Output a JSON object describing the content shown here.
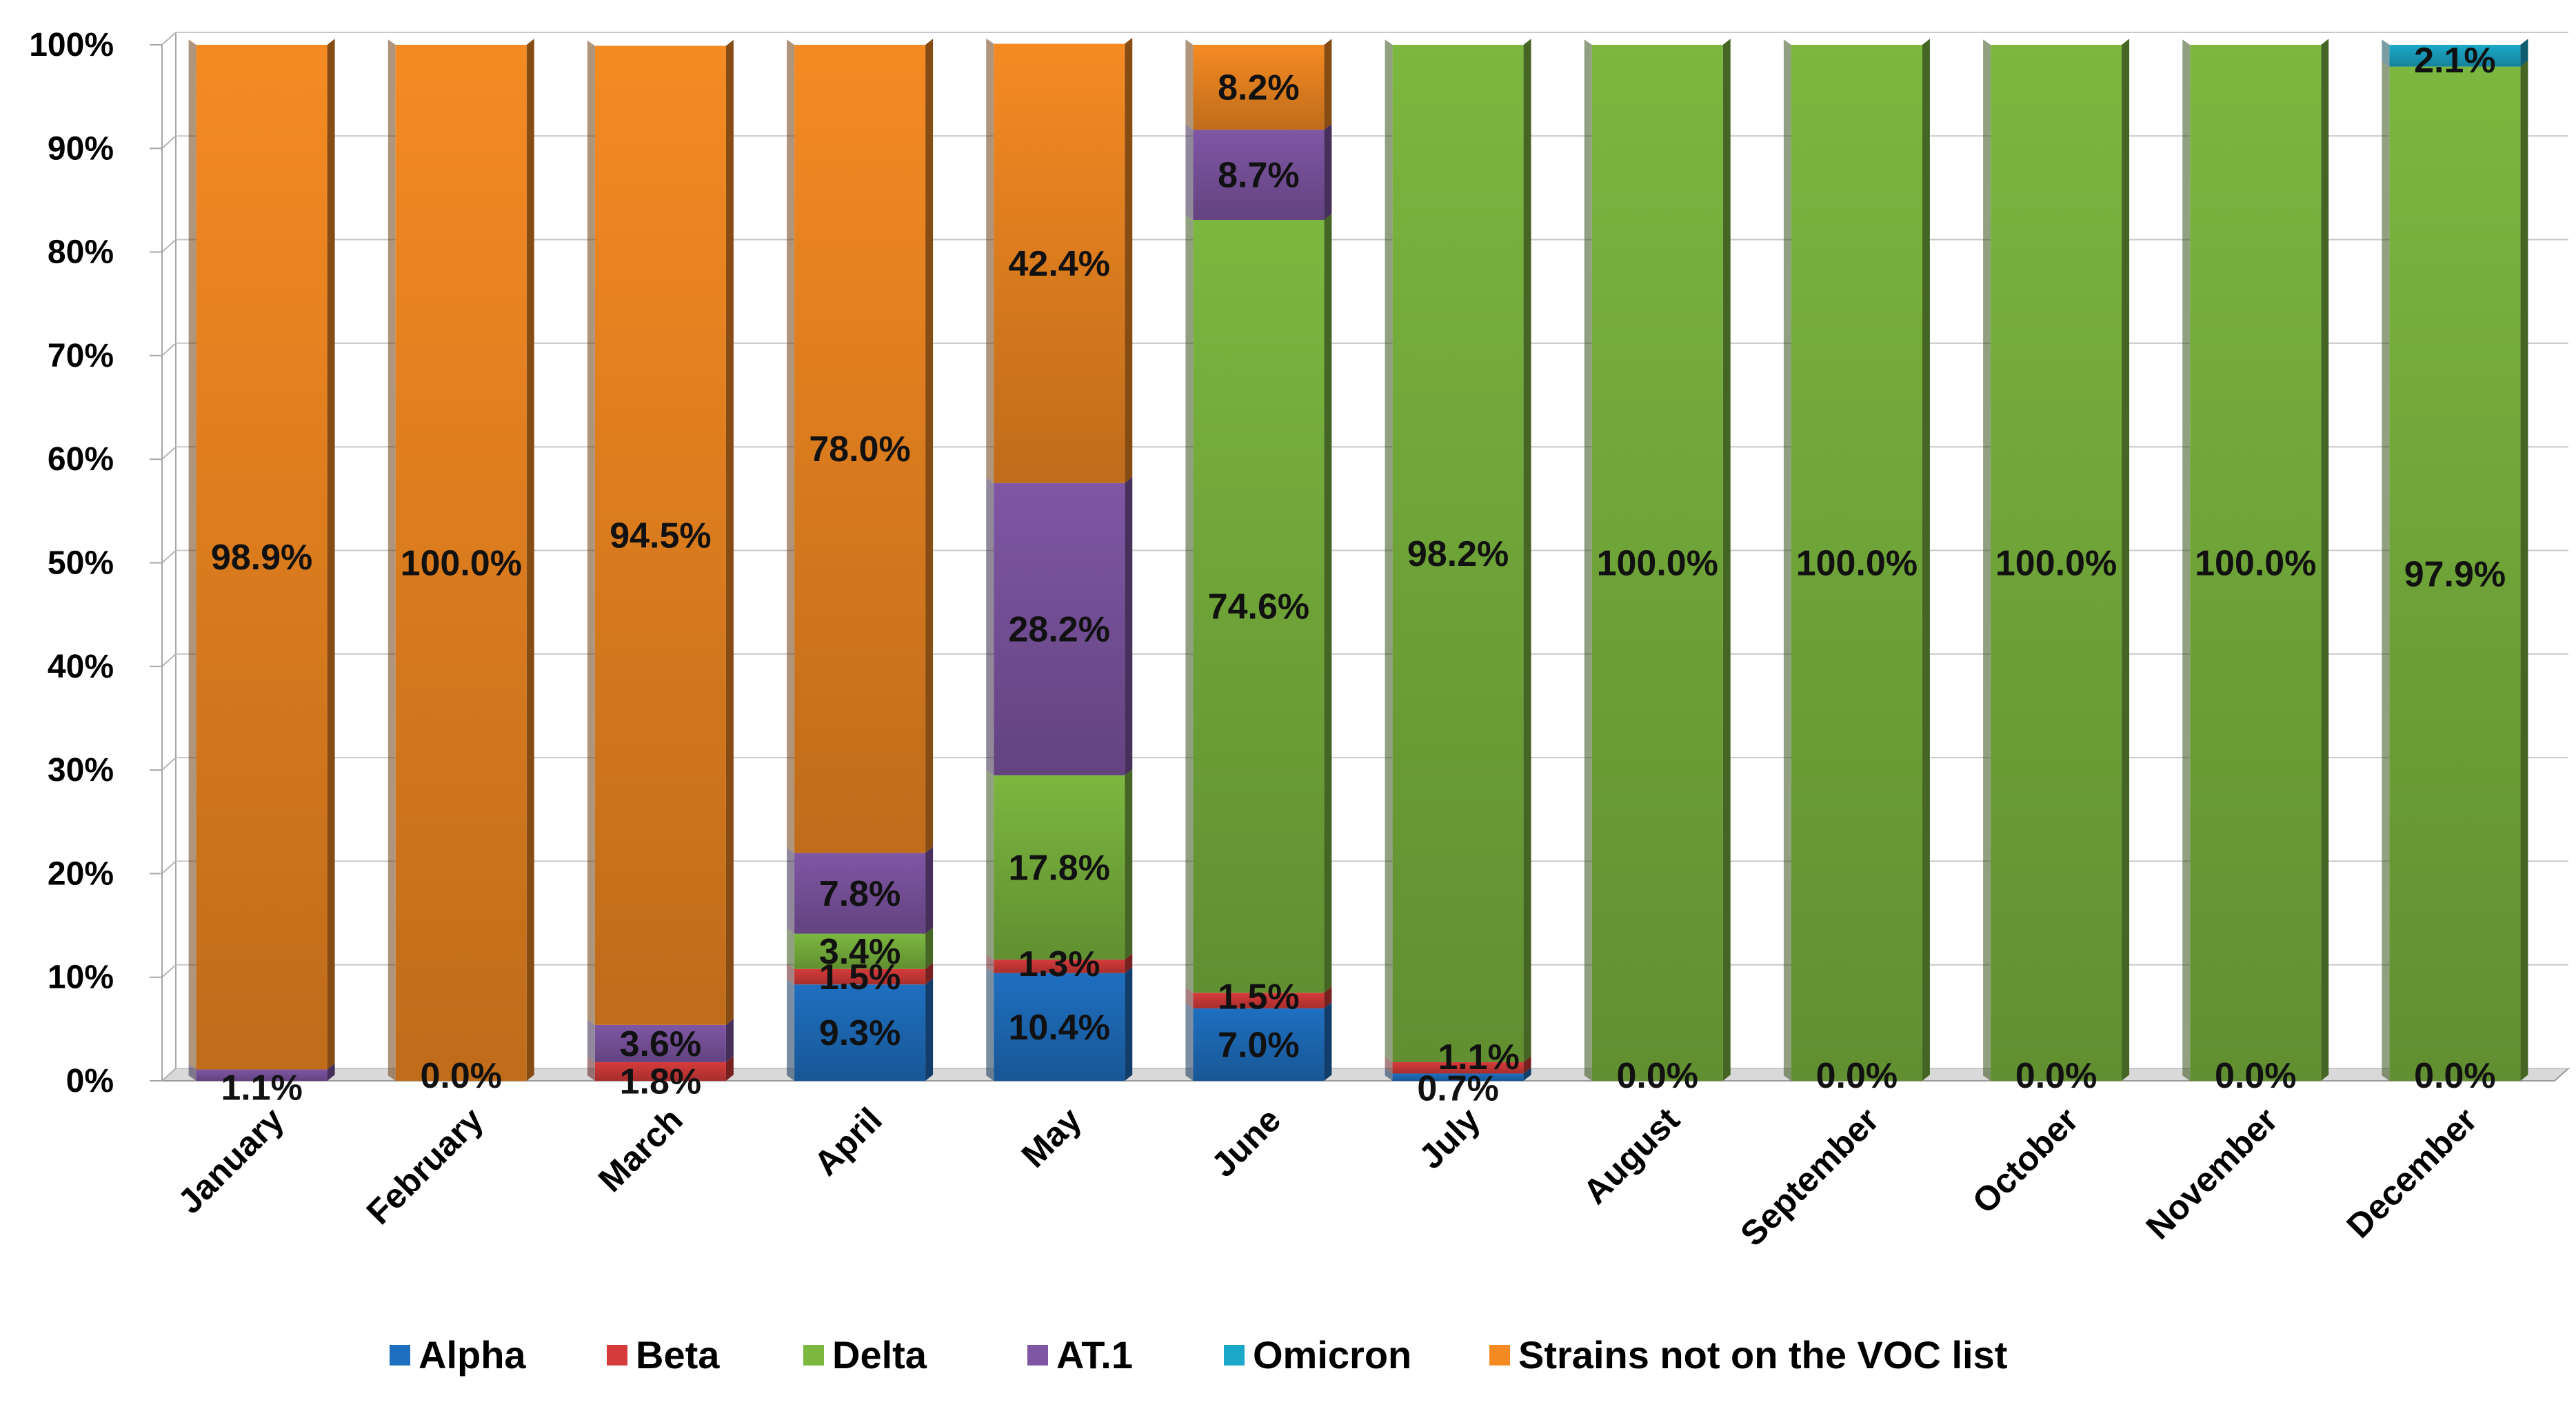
{
  "chart_data": {
    "type": "bar",
    "stacked": true,
    "percent": true,
    "title": "",
    "xlabel": "",
    "ylabel": "",
    "ylim": [
      0,
      100
    ],
    "y_ticks": [
      "0%",
      "10%",
      "20%",
      "30%",
      "40%",
      "50%",
      "60%",
      "70%",
      "80%",
      "90%",
      "100%"
    ],
    "categories": [
      "January",
      "February",
      "March",
      "April",
      "May",
      "June",
      "July",
      "August",
      "September",
      "October",
      "November",
      "December"
    ],
    "series": [
      {
        "name": "Alpha",
        "color": "#1f6fc0",
        "values": [
          0,
          0,
          0,
          9.3,
          10.4,
          7.0,
          0.7,
          0,
          0,
          0,
          0,
          0
        ]
      },
      {
        "name": "Beta",
        "color": "#d63b3b",
        "values": [
          0,
          0,
          1.8,
          1.5,
          1.3,
          1.5,
          1.1,
          0,
          0,
          0,
          0,
          0
        ]
      },
      {
        "name": "Delta",
        "color": "#7cb73f",
        "values": [
          0,
          0,
          0,
          3.4,
          17.8,
          74.6,
          98.2,
          100.0,
          100.0,
          100.0,
          100.0,
          97.9
        ]
      },
      {
        "name": "AT.1",
        "color": "#7f56a4",
        "values": [
          1.1,
          0,
          3.6,
          7.8,
          28.2,
          8.7,
          0,
          0,
          0,
          0,
          0,
          0
        ]
      },
      {
        "name": "Omicron",
        "color": "#1ba8c8",
        "values": [
          0,
          0,
          0,
          0,
          0,
          0,
          0,
          0,
          0,
          0,
          0,
          2.1
        ]
      },
      {
        "name": "Strains not on the VOC list",
        "color": "#f58a22",
        "values": [
          98.9,
          100.0,
          94.5,
          78.0,
          42.4,
          8.2,
          0,
          0,
          0,
          0,
          0,
          0
        ]
      }
    ],
    "data_labels": [
      {
        "category": "January",
        "series": "AT.1",
        "text": "1.1%"
      },
      {
        "category": "January",
        "series": "Strains not on the VOC list",
        "text": "98.9%"
      },
      {
        "category": "February",
        "series": "Alpha",
        "text": "0.0%"
      },
      {
        "category": "February",
        "series": "Strains not on the VOC list",
        "text": "100.0%"
      },
      {
        "category": "March",
        "series": "Beta",
        "text": "1.8%"
      },
      {
        "category": "March",
        "series": "AT.1",
        "text": "3.6%"
      },
      {
        "category": "March",
        "series": "Strains not on the VOC list",
        "text": "94.5%"
      },
      {
        "category": "April",
        "series": "Alpha",
        "text": "9.3%"
      },
      {
        "category": "April",
        "series": "Beta",
        "text": "1.5%"
      },
      {
        "category": "April",
        "series": "Delta",
        "text": "3.4%"
      },
      {
        "category": "April",
        "series": "AT.1",
        "text": "7.8%"
      },
      {
        "category": "April",
        "series": "Strains not on the VOC list",
        "text": "78.0%"
      },
      {
        "category": "May",
        "series": "Alpha",
        "text": "10.4%"
      },
      {
        "category": "May",
        "series": "Beta",
        "text": "1.3%"
      },
      {
        "category": "May",
        "series": "Delta",
        "text": "17.8%"
      },
      {
        "category": "May",
        "series": "AT.1",
        "text": "28.2%"
      },
      {
        "category": "May",
        "series": "Strains not on the VOC list",
        "text": "42.4%"
      },
      {
        "category": "June",
        "series": "Alpha",
        "text": "7.0%"
      },
      {
        "category": "June",
        "series": "Beta",
        "text": "1.5%"
      },
      {
        "category": "June",
        "series": "Delta",
        "text": "74.6%"
      },
      {
        "category": "June",
        "series": "AT.1",
        "text": "8.7%"
      },
      {
        "category": "June",
        "series": "Strains not on the VOC list",
        "text": "8.2%"
      },
      {
        "category": "July",
        "series": "Alpha",
        "text": "0.7%"
      },
      {
        "category": "July",
        "series": "Beta",
        "text": "1.1%"
      },
      {
        "category": "July",
        "series": "Delta",
        "text": "98.2%"
      },
      {
        "category": "August",
        "series": "Alpha",
        "text": "0.0%"
      },
      {
        "category": "August",
        "series": "Delta",
        "text": "100.0%"
      },
      {
        "category": "September",
        "series": "Alpha",
        "text": "0.0%"
      },
      {
        "category": "September",
        "series": "Delta",
        "text": "100.0%"
      },
      {
        "category": "October",
        "series": "Alpha",
        "text": "0.0%"
      },
      {
        "category": "October",
        "series": "Delta",
        "text": "100.0%"
      },
      {
        "category": "November",
        "series": "Alpha",
        "text": "0.0%"
      },
      {
        "category": "November",
        "series": "Delta",
        "text": "100.0%"
      },
      {
        "category": "December",
        "series": "Alpha",
        "text": "0.0%"
      },
      {
        "category": "December",
        "series": "Delta",
        "text": "97.9%"
      },
      {
        "category": "December",
        "series": "Omicron",
        "text": "2.1%"
      }
    ],
    "legend": [
      "Alpha",
      "Beta",
      "Delta",
      "AT.1",
      "Omicron",
      "Strains not on the VOC list"
    ],
    "legend_position": "bottom",
    "grid": true
  }
}
